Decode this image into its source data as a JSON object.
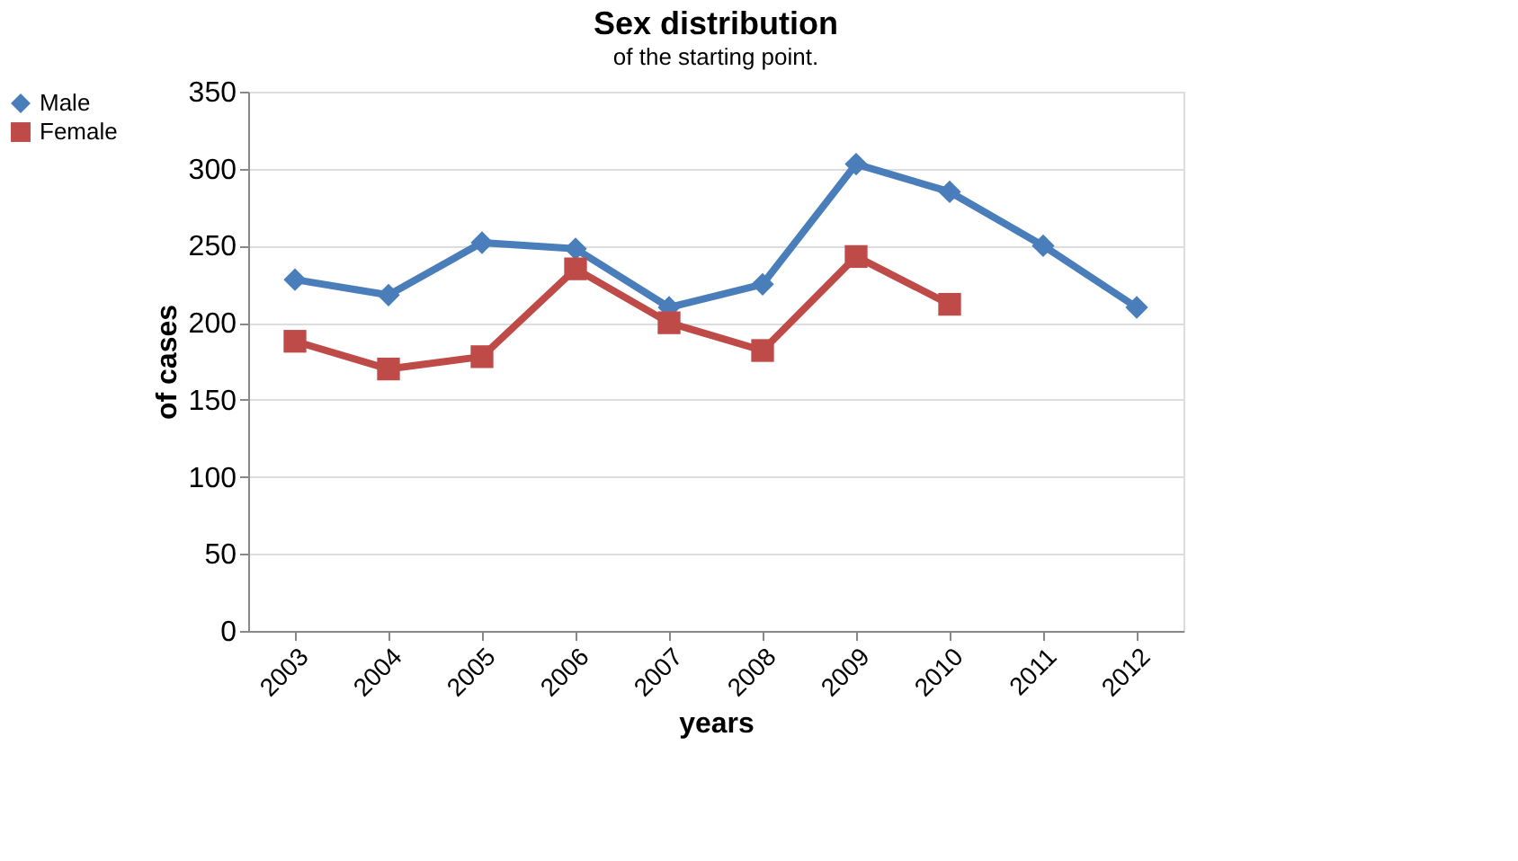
{
  "chart_data": {
    "type": "line",
    "title": "Sex distribution",
    "xlabel": "years",
    "ylabel": "of cases",
    "annotations": [
      "of the starting point."
    ],
    "categories": [
      "2003",
      "2004",
      "2005",
      "2006",
      "2007",
      "2008",
      "2009",
      "2010",
      "2011",
      "2012"
    ],
    "series": [
      {
        "name": "Male",
        "color": "#4a7ebb",
        "marker": "diamond",
        "values": [
          228,
          218,
          252,
          248,
          210,
          225,
          303,
          285,
          250,
          210
        ]
      },
      {
        "name": "Female",
        "color": "#be4b48",
        "marker": "square",
        "values": [
          188,
          170,
          178,
          235,
          200,
          182,
          243,
          212,
          null,
          null
        ]
      }
    ],
    "ylim": [
      0,
      350
    ],
    "yticks": [
      0,
      50,
      100,
      150,
      200,
      250,
      300,
      350
    ],
    "grid": "y",
    "legend": "left"
  }
}
